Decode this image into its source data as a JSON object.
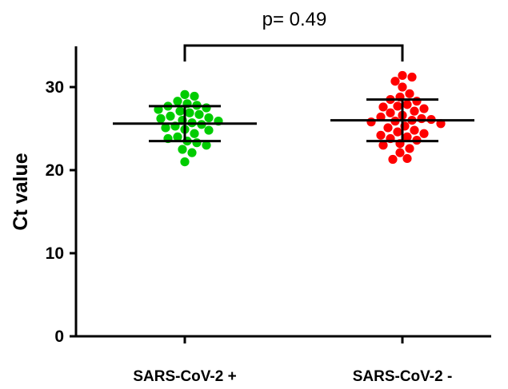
{
  "chart_data": {
    "type": "scatter",
    "ylabel": "Ct value",
    "ylim": [
      0,
      35
    ],
    "yticks": [
      0,
      10,
      20,
      30
    ],
    "categories": [
      "SARS-CoV-2 +",
      "SARS-CoV-2 -"
    ],
    "annotation": "p= 0.49",
    "grid": false,
    "series": [
      {
        "color": "#00cc00",
        "mean": 25.6,
        "sd": 2.1,
        "values": [
          29.1,
          28.9,
          28.3,
          28.0,
          27.8,
          27.7,
          27.5,
          27.3,
          27.1,
          26.9,
          26.7,
          26.5,
          26.3,
          26.2,
          26.0,
          25.9,
          25.7,
          25.5,
          25.3,
          25.1,
          24.9,
          24.8,
          24.4,
          24.0,
          23.8,
          23.5,
          23.3,
          23.0,
          22.5,
          22.1,
          21.0
        ]
      },
      {
        "color": "#ff0000",
        "mean": 26.0,
        "sd": 2.5,
        "values": [
          31.4,
          31.2,
          30.7,
          30.0,
          29.2,
          28.8,
          28.5,
          28.3,
          27.9,
          27.7,
          27.6,
          27.4,
          27.1,
          26.9,
          26.6,
          26.4,
          26.2,
          26.1,
          26.0,
          25.9,
          25.8,
          25.6,
          25.3,
          25.1,
          24.8,
          24.6,
          24.4,
          24.2,
          24.0,
          23.8,
          23.6,
          23.2,
          23.0,
          22.6,
          22.1,
          21.4,
          21.3
        ]
      }
    ]
  }
}
